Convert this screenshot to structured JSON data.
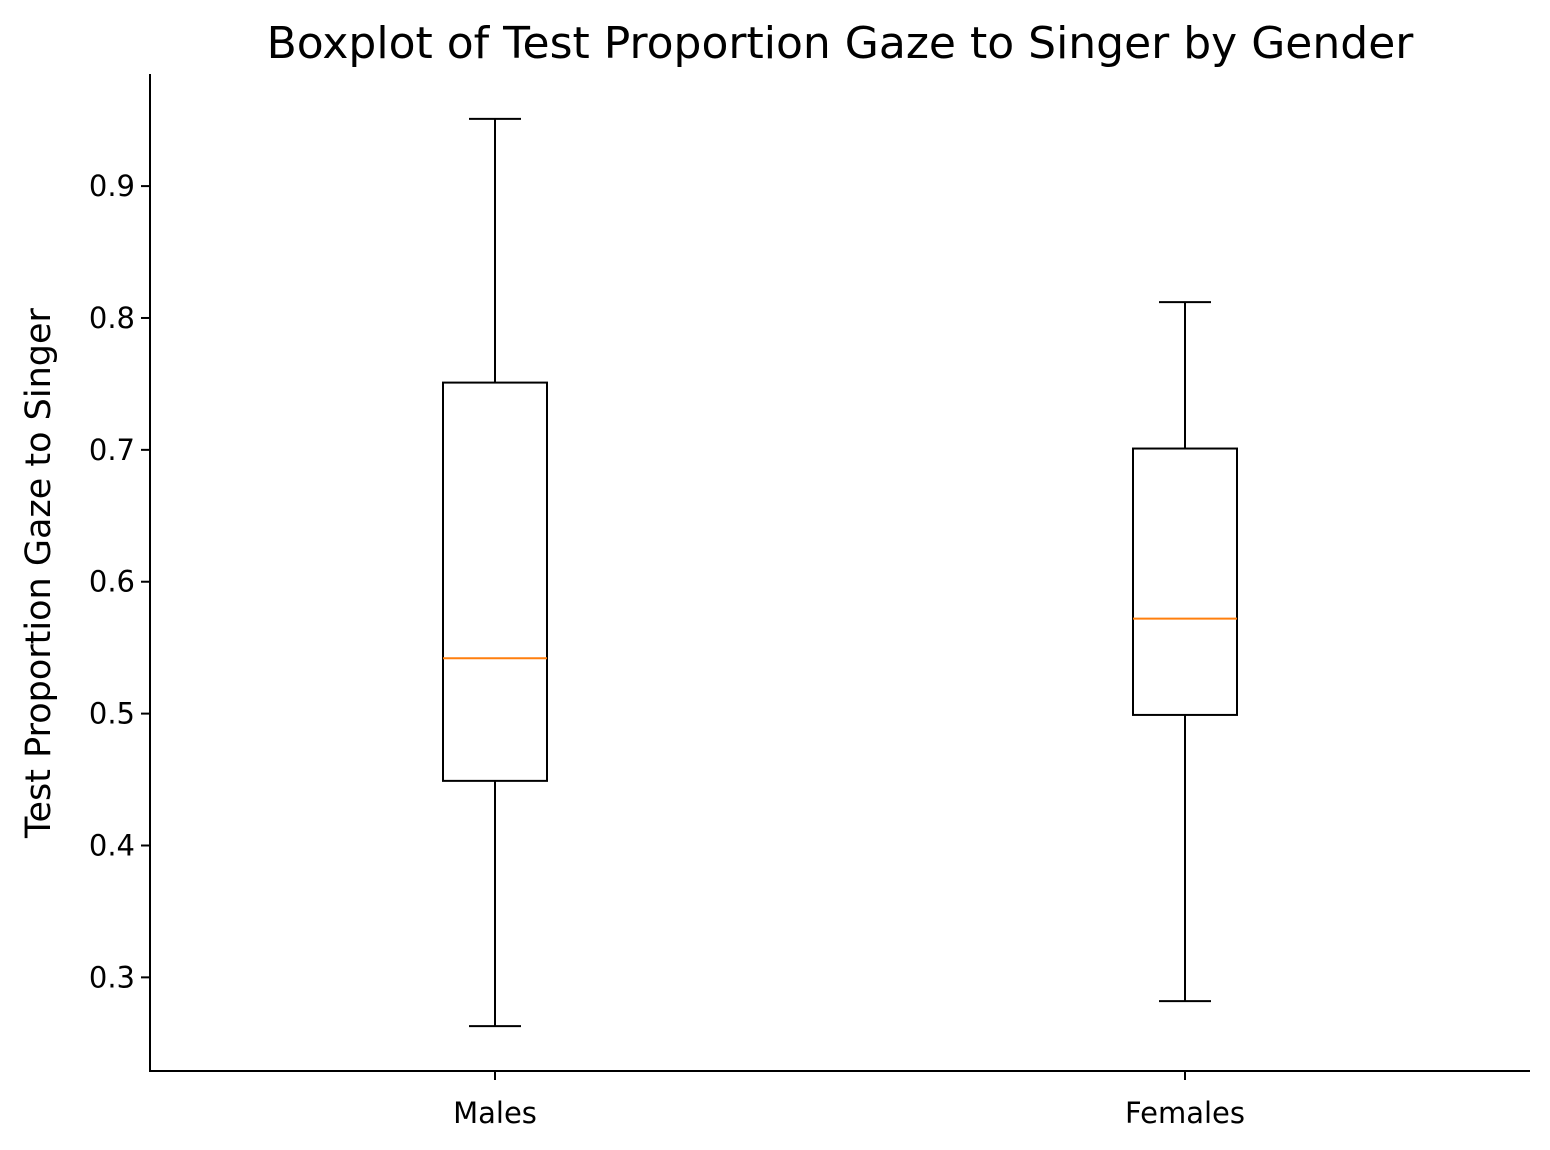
{
  "chart_data": {
    "type": "boxplot",
    "title": "Boxplot of Test Proportion Gaze to Singer by Gender",
    "xlabel": "",
    "ylabel": "Test Proportion Gaze to Singer",
    "categories": [
      "Males",
      "Females"
    ],
    "boxes": [
      {
        "category": "Males",
        "whisker_low": 0.263,
        "q1": 0.449,
        "median": 0.542,
        "q3": 0.751,
        "whisker_high": 0.951
      },
      {
        "category": "Females",
        "whisker_low": 0.282,
        "q1": 0.499,
        "median": 0.572,
        "q3": 0.701,
        "whisker_high": 0.812
      }
    ],
    "y_ticks": [
      0.3,
      0.4,
      0.5,
      0.6,
      0.7,
      0.8,
      0.9
    ],
    "y_tick_labels": [
      "0.3",
      "0.4",
      "0.5",
      "0.6",
      "0.7",
      "0.8",
      "0.9"
    ],
    "ylim": [
      0.229,
      0.985
    ],
    "grid": false,
    "colors": {
      "box": "#000000",
      "whisker": "#000000",
      "median": "#ff7f0e",
      "axis": "#000000",
      "background": "#ffffff"
    }
  }
}
